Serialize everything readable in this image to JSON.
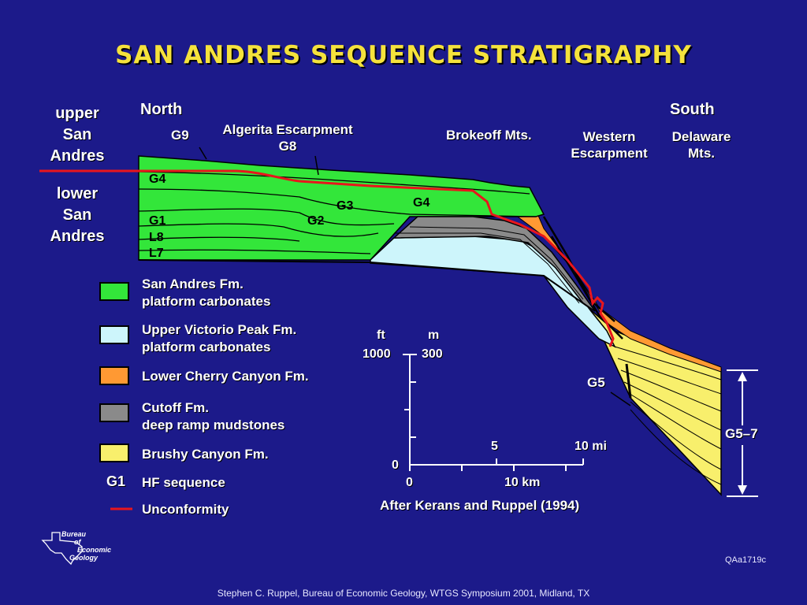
{
  "title": "SAN ANDRES SEQUENCE STRATIGRAPHY",
  "side_labels": {
    "upper": [
      "upper",
      "San",
      "Andres"
    ],
    "lower": [
      "lower",
      "San",
      "Andres"
    ]
  },
  "direction": {
    "north": "North",
    "south": "South"
  },
  "localities": {
    "algerita": [
      "Algerita Escarpment",
      "G8"
    ],
    "brokeoff": "Brokeoff Mts.",
    "western": [
      "Western",
      "Escarpment"
    ],
    "delaware": [
      "Delaware",
      "Mts."
    ]
  },
  "sequences": {
    "g9": "G9",
    "g4_left": "G4",
    "g3": "G3",
    "g4_right": "G4",
    "g1": "G1",
    "g2": "G2",
    "l8": "L8",
    "l7": "L7",
    "g5": "G5",
    "g5_7": "G5–7"
  },
  "legend": {
    "items": [
      {
        "color": "#33e63a",
        "lines": [
          "San Andres Fm.",
          "platform carbonates"
        ]
      },
      {
        "color": "#cdf5fb",
        "lines": [
          "Upper Victorio Peak Fm.",
          "platform carbonates"
        ]
      },
      {
        "color": "#ff9933",
        "lines": [
          "Lower Cherry Canyon Fm."
        ]
      },
      {
        "color": "#8a8a8a",
        "lines": [
          "Cutoff Fm.",
          "deep ramp mudstones"
        ]
      },
      {
        "color": "#f8ef6c",
        "lines": [
          "Brushy Canyon Fm."
        ]
      }
    ],
    "sequence_key": "G1",
    "sequence_desc": "HF sequence",
    "unconformity_color": "#e8161c",
    "unconformity_desc": "Unconformity"
  },
  "scale": {
    "ft_unit": "ft",
    "m_unit": "m",
    "ft_value": "1000",
    "m_value": "300",
    "zero_v": "0",
    "zero_h": "0",
    "mi_5": "5",
    "mi_10": "10 mi",
    "km_10": "10 km"
  },
  "citation": "After Kerans and Ruppel (1994)",
  "logo": [
    "Bureau",
    "of",
    "Economic",
    "Geology"
  ],
  "code": "QAa1719c",
  "footer": "Stephen C. Ruppel, Bureau of Economic Geology, WTGS Symposium 2001, Midland, TX"
}
